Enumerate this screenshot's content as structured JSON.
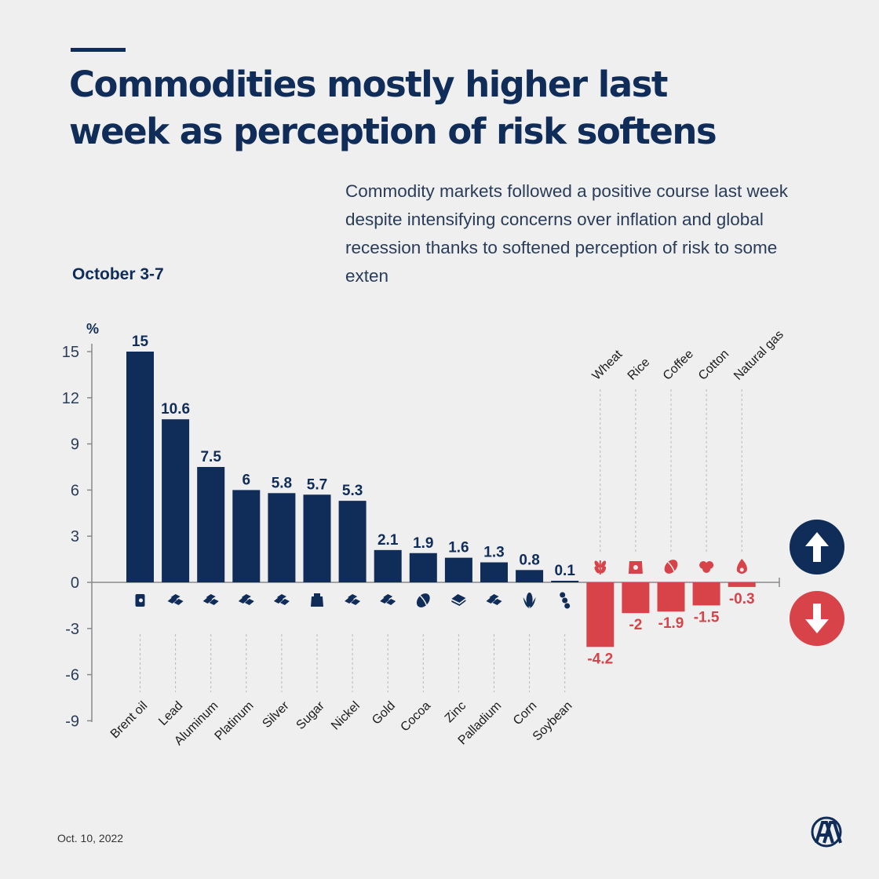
{
  "header": {
    "title": "Commodities mostly higher last week as perception of risk softens",
    "subtitle": "Commodity markets followed a positive course last week despite intensifying concerns over inflation and global recession thanks to softened perception of risk to some exten",
    "period": "October 3-7"
  },
  "footer": {
    "date": "Oct. 10, 2022"
  },
  "colors": {
    "positive": "#0f2d58",
    "negative": "#d8434a",
    "background": "#efefef"
  },
  "chart_data": {
    "type": "bar",
    "ylabel": "%",
    "ylim": [
      -9,
      15
    ],
    "yticks": [
      15,
      12,
      9,
      6,
      3,
      0,
      -3,
      -6,
      -9
    ],
    "categories": [
      "Brent oil",
      "Lead",
      "Aluminum",
      "Platinum",
      "Silver",
      "Sugar",
      "Nickel",
      "Gold",
      "Cocoa",
      "Zinc",
      "Palladium",
      "Corn",
      "Soybean",
      "Wheat",
      "Rice",
      "Coffee",
      "Cotton",
      "Natural gas"
    ],
    "value_labels": [
      "15",
      "10.6",
      "7.5",
      "6",
      "5.8",
      "5.7",
      "5.3",
      "2.1",
      "1.9",
      "1.6",
      "1.3",
      "0.8",
      "0.1",
      "-4.2",
      "-2",
      "-1.9",
      "-1.5",
      "-0.3"
    ],
    "values": [
      15,
      10.6,
      7.5,
      6,
      5.8,
      5.7,
      5.3,
      2.1,
      1.9,
      1.6,
      1.3,
      0.8,
      0.1,
      -4.2,
      -2,
      -1.9,
      -1.5,
      -0.3
    ],
    "icons": [
      "oil-barrel-icon",
      "metal-bars-icon",
      "metal-bars-icon",
      "metal-bars-icon",
      "metal-bars-icon",
      "sugar-sack-icon",
      "metal-bars-icon",
      "metal-bars-icon",
      "cocoa-bean-icon",
      "metal-block-icon",
      "metal-bars-icon",
      "corn-icon",
      "soybean-icon",
      "wheat-icon",
      "rice-sack-icon",
      "coffee-bean-icon",
      "cotton-icon",
      "gas-flame-icon"
    ],
    "grid": false
  }
}
